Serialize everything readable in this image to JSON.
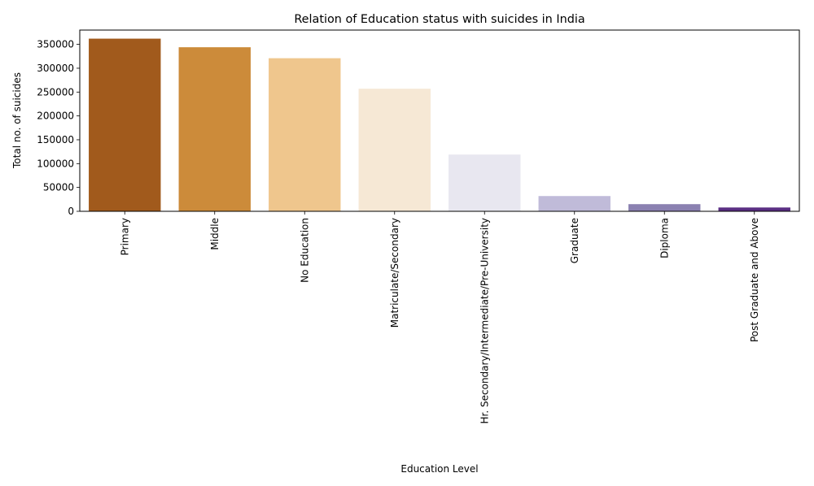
{
  "chart_data": {
    "type": "bar",
    "title": "Relation of Education status with suicides in India",
    "xlabel": "Education Level",
    "ylabel": "Total no. of suicides",
    "categories": [
      "Primary",
      "Middle",
      "No Education",
      "Matriculate/Secondary",
      "Hr. Secondary/Intermediate/Pre-University",
      "Graduate",
      "Diploma",
      "Post Graduate and Above"
    ],
    "values": [
      362000,
      344000,
      321000,
      257000,
      119000,
      32000,
      15000,
      8000
    ],
    "colors": [
      "#a15a1c",
      "#cc8b3a",
      "#efc68d",
      "#f6e8d5",
      "#e8e7f0",
      "#c0bbd9",
      "#8b81b1",
      "#5a2e83"
    ],
    "ylim": [
      0,
      380000
    ],
    "yticks": [
      0,
      50000,
      100000,
      150000,
      200000,
      250000,
      300000,
      350000
    ],
    "ytick_labels": [
      "0",
      "50000",
      "100000",
      "150000",
      "200000",
      "250000",
      "300000",
      "350000"
    ],
    "grid": false,
    "legend": "none"
  }
}
